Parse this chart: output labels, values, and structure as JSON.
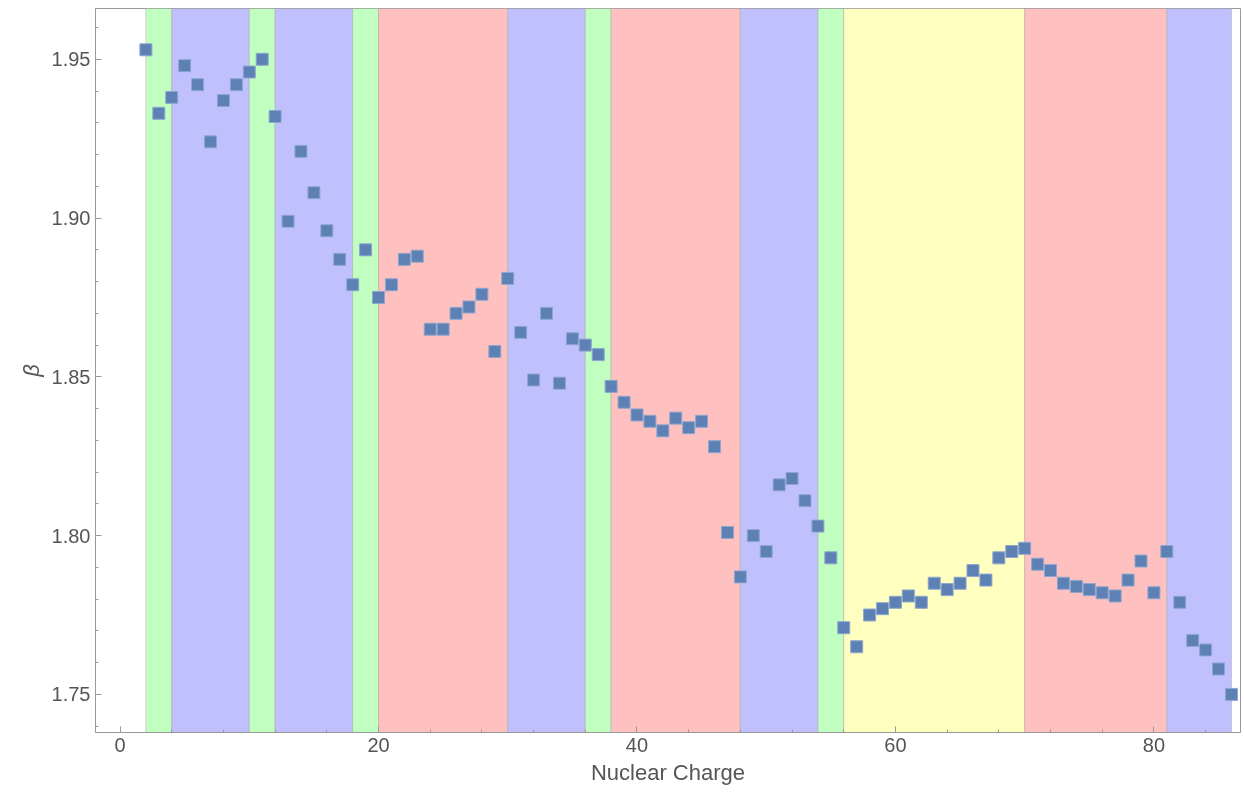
{
  "chart_data": {
    "type": "scatter",
    "xlabel": "Nuclear Charge",
    "ylabel": "β",
    "x": [
      2,
      3,
      4,
      5,
      6,
      7,
      8,
      9,
      10,
      11,
      12,
      13,
      14,
      15,
      16,
      17,
      18,
      19,
      20,
      21,
      22,
      23,
      24,
      25,
      26,
      27,
      28,
      29,
      30,
      31,
      32,
      33,
      34,
      35,
      36,
      37,
      38,
      39,
      40,
      41,
      42,
      43,
      44,
      45,
      46,
      47,
      48,
      49,
      50,
      51,
      52,
      53,
      54,
      55,
      56,
      57,
      58,
      59,
      60,
      61,
      62,
      63,
      64,
      65,
      66,
      67,
      68,
      69,
      70,
      71,
      72,
      73,
      74,
      75,
      76,
      77,
      78,
      79,
      80,
      81,
      82,
      83,
      84,
      85,
      86
    ],
    "series": [
      {
        "color": "#5e81b5",
        "values": [
          1.953,
          1.933,
          1.938,
          1.948,
          1.942,
          1.924,
          1.937,
          1.942,
          1.946,
          1.95,
          1.932,
          1.899,
          1.921,
          1.908,
          1.896,
          1.887,
          1.879,
          1.89,
          1.875,
          1.879,
          1.887,
          1.888,
          1.865,
          1.865,
          1.87,
          1.872,
          1.876,
          1.858,
          1.881,
          1.864,
          1.849,
          1.87,
          1.848,
          1.862,
          1.86,
          1.857,
          1.847,
          1.842,
          1.838,
          1.836,
          1.833,
          1.837,
          1.834,
          1.836,
          1.828,
          1.801,
          1.787,
          1.8,
          1.795,
          1.816,
          1.818,
          1.811,
          1.803,
          1.793,
          1.771,
          1.765,
          1.775,
          1.777,
          1.779,
          1.781,
          1.779,
          1.785,
          1.783,
          1.785,
          1.789,
          1.786,
          1.793,
          1.795,
          1.796,
          1.791,
          1.789,
          1.785,
          1.784,
          1.783,
          1.782,
          1.781,
          1.786,
          1.792,
          1.782,
          1.795,
          1.779,
          1.767,
          1.764,
          1.758,
          1.75
        ]
      }
    ],
    "marker": "square",
    "grid": false,
    "xlim": [
      -1.9,
      86.7
    ],
    "xticks": [
      0,
      20,
      40,
      60,
      80
    ],
    "ylim": [
      1.738,
      1.966
    ],
    "yticks": [
      1.75,
      {
        "value": 1.8,
        "label": "1.80"
      },
      1.85,
      {
        "value": 1.9,
        "label": "1.90"
      },
      1.95
    ],
    "bands": [
      {
        "axis": "x",
        "from": 2,
        "to": 4,
        "color": "#c0ffc0"
      },
      {
        "axis": "x",
        "from": 4,
        "to": 10,
        "color": "#c0c0ff"
      },
      {
        "axis": "x",
        "from": 10,
        "to": 12,
        "color": "#c0ffc0"
      },
      {
        "axis": "x",
        "from": 12,
        "to": 18,
        "color": "#c0c0ff"
      },
      {
        "axis": "x",
        "from": 18,
        "to": 20,
        "color": "#c0ffc0"
      },
      {
        "axis": "x",
        "from": 20,
        "to": 30,
        "color": "#ffc0c0"
      },
      {
        "axis": "x",
        "from": 30,
        "to": 36,
        "color": "#c0c0ff"
      },
      {
        "axis": "x",
        "from": 36,
        "to": 38,
        "color": "#c0ffc0"
      },
      {
        "axis": "x",
        "from": 38,
        "to": 48,
        "color": "#ffc0c0"
      },
      {
        "axis": "x",
        "from": 48,
        "to": 54,
        "color": "#c0c0ff"
      },
      {
        "axis": "x",
        "from": 54,
        "to": 56,
        "color": "#c0ffc0"
      },
      {
        "axis": "x",
        "from": 56,
        "to": 70,
        "color": "#ffffc0"
      },
      {
        "axis": "x",
        "from": 70,
        "to": 81,
        "color": "#ffc0c0"
      },
      {
        "axis": "x",
        "from": 81,
        "to": 86,
        "color": "#c0c0ff"
      }
    ]
  }
}
